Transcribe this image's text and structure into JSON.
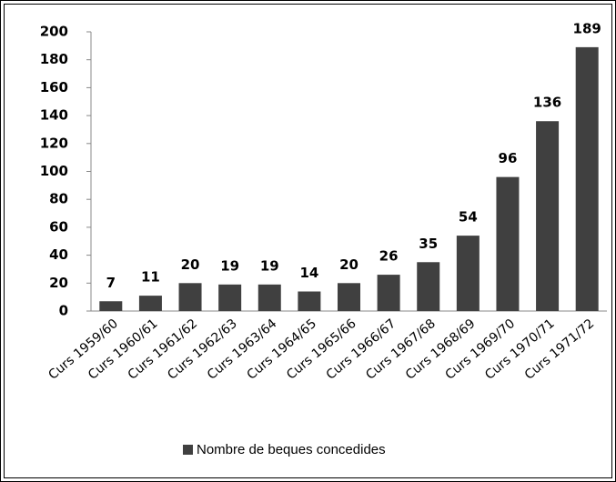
{
  "chart_data": {
    "type": "bar",
    "categories": [
      "Curs 1959/60",
      "Curs 1960/61",
      "Curs 1961/62",
      "Curs 1962/63",
      "Curs 1963/64",
      "Curs 1964/65",
      "Curs 1965/66",
      "Curs 1966/67",
      "Curs 1967/68",
      "Curs 1968/69",
      "Curs 1969/70",
      "Curs 1970/71",
      "Curs 1971/72"
    ],
    "series": [
      {
        "name": "Nombre de beques concedides",
        "color": "#404040",
        "values": [
          7,
          11,
          20,
          19,
          19,
          14,
          20,
          26,
          35,
          54,
          96,
          136,
          189
        ]
      }
    ],
    "ylim": [
      0,
      200
    ],
    "yticks": [
      0,
      20,
      40,
      60,
      80,
      100,
      120,
      140,
      160,
      180,
      200
    ],
    "legend": "bottom",
    "grid": false
  }
}
